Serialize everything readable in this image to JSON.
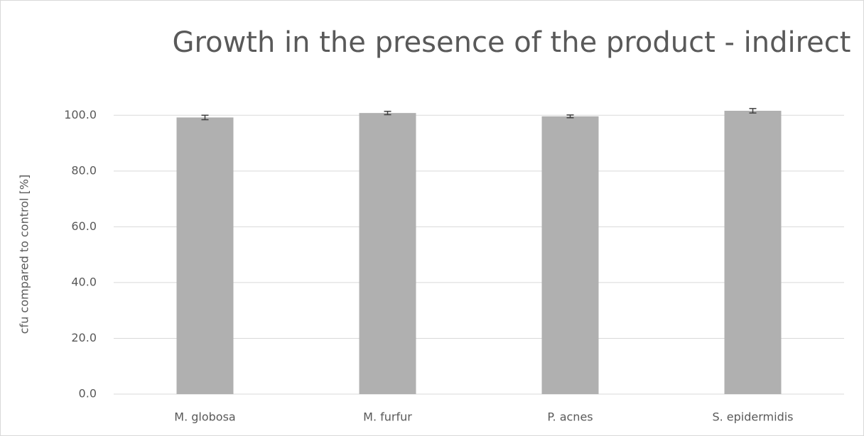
{
  "chart_data": {
    "type": "bar",
    "title": "Growth in the presence of the product - indirect",
    "ylabel": "cfu compared to control [%]",
    "categories": [
      "M. globosa",
      "M. furfur",
      "P. acnes",
      "S. epidermidis"
    ],
    "values": [
      99.2,
      100.8,
      99.6,
      101.6
    ],
    "errors": [
      0.8,
      0.6,
      0.5,
      0.8
    ],
    "color": "#b0b0b0",
    "ylim": [
      0,
      110
    ],
    "yticks": [
      {
        "value": 0,
        "label": "0.0"
      },
      {
        "value": 20,
        "label": "20.0"
      },
      {
        "value": 40,
        "label": "40.0"
      },
      {
        "value": 60,
        "label": "60.0"
      },
      {
        "value": 80,
        "label": "80.0"
      },
      {
        "value": 100,
        "label": "100.0"
      }
    ],
    "grid": true
  }
}
